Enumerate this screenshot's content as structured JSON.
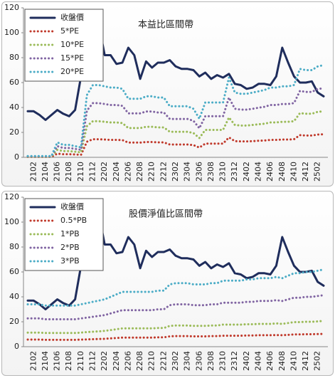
{
  "chart_data": [
    {
      "type": "line",
      "title": "本益比區間帶",
      "ylim": [
        0,
        120
      ],
      "yticks": [
        0,
        20,
        40,
        60,
        80,
        100,
        120
      ],
      "legend": "upper left",
      "categories": [
        null,
        "2102",
        null,
        "2104",
        null,
        "2106",
        null,
        "2108",
        null,
        "2110",
        null,
        "2112",
        null,
        "2202",
        null,
        "2204",
        null,
        "2206",
        null,
        "2208",
        null,
        "2210",
        null,
        "2212",
        null,
        "2302",
        null,
        "2304",
        null,
        "2306",
        null,
        "2308",
        null,
        "2310",
        null,
        "2312",
        null,
        "2402",
        null,
        "2404",
        null,
        "2406",
        null,
        "2408",
        null,
        "2410",
        null,
        "2412",
        null,
        "2502",
        null
      ],
      "series": [
        {
          "name": "收盤價",
          "color": "#1f2d5c",
          "style": "solid",
          "values": [
            37,
            37,
            34,
            30,
            34,
            38,
            35,
            33,
            38,
            65,
            85,
            111,
            107,
            82,
            82,
            75,
            76,
            88,
            82,
            63,
            77,
            72,
            76,
            76,
            78,
            73,
            71,
            71,
            70,
            65,
            68,
            63,
            66,
            64,
            67,
            59,
            58,
            55,
            56,
            59,
            59,
            58,
            65,
            88,
            76,
            65,
            60,
            60,
            61,
            52,
            49
          ]
        },
        {
          "name": "5*PE",
          "color": "#c0392b",
          "style": "dotted",
          "values": [
            0.3,
            0.3,
            0.3,
            0.3,
            0.3,
            3,
            2.5,
            2.5,
            2.3,
            2,
            12.5,
            14.5,
            14.5,
            14.3,
            14,
            14,
            13.8,
            11.8,
            11.8,
            11.8,
            12.3,
            12.3,
            12,
            12,
            10.3,
            10.3,
            10.3,
            10.3,
            9.8,
            7.8,
            11,
            11,
            11,
            11,
            16,
            13,
            12.8,
            12.8,
            13,
            13.3,
            13.5,
            14,
            14,
            14.3,
            14.3,
            14.5,
            17.8,
            17.5,
            17.5,
            18.3,
            18.5
          ]
        },
        {
          "name": "10*PE",
          "color": "#9bbb59",
          "style": "dotted",
          "values": [
            0.5,
            0.5,
            0.5,
            0.5,
            0.5,
            6,
            5,
            5,
            4.5,
            4,
            25,
            29,
            29,
            28.5,
            28,
            28,
            27.5,
            23.5,
            23.5,
            23.5,
            24.5,
            24.5,
            24,
            24,
            20.5,
            20.5,
            20.5,
            20.5,
            19.5,
            15.5,
            22,
            22,
            22,
            22,
            32,
            26,
            25.5,
            25.5,
            26,
            26.5,
            27,
            28,
            28,
            28.5,
            28.5,
            29,
            35.5,
            35,
            35,
            36.5,
            37
          ]
        },
        {
          "name": "15*PE",
          "color": "#8064a2",
          "style": "dotted",
          "values": [
            0.8,
            0.8,
            0.8,
            0.8,
            0.8,
            9,
            7.5,
            7.5,
            6.8,
            6,
            37.5,
            43.5,
            43.5,
            42.8,
            42,
            42,
            41.3,
            35.3,
            35.3,
            35.3,
            36.8,
            36.8,
            36,
            36,
            30.8,
            30.8,
            30.8,
            30.8,
            29.3,
            23.3,
            33,
            33,
            33,
            33,
            48,
            39,
            38.3,
            38.3,
            39,
            39.8,
            40.5,
            42,
            42,
            42.8,
            42.8,
            43.5,
            53.3,
            52.5,
            52.5,
            54.8,
            55.5
          ]
        },
        {
          "name": "20*PE",
          "color": "#4bacc6",
          "style": "dotted",
          "values": [
            1,
            1,
            1,
            1,
            1,
            12,
            10,
            10,
            9,
            8,
            50,
            58,
            58,
            57,
            56,
            56,
            55,
            47,
            47,
            47,
            49,
            49,
            48,
            48,
            41,
            41,
            41,
            41,
            39,
            31,
            44,
            44,
            44,
            44,
            64,
            52,
            51,
            51,
            52,
            53,
            54,
            56,
            56,
            57,
            57,
            58,
            71,
            70,
            70,
            73,
            74
          ]
        }
      ]
    },
    {
      "type": "line",
      "title": "股價淨值比區間帶",
      "ylim": [
        0,
        120
      ],
      "yticks": [
        0,
        20,
        40,
        60,
        80,
        100,
        120
      ],
      "legend": "upper left",
      "categories": [
        null,
        "2102",
        null,
        "2104",
        null,
        "2106",
        null,
        "2108",
        null,
        "2110",
        null,
        "2112",
        null,
        "2202",
        null,
        "2204",
        null,
        "2206",
        null,
        "2208",
        null,
        "2210",
        null,
        "2212",
        null,
        "2302",
        null,
        "2304",
        null,
        "2306",
        null,
        "2308",
        null,
        "2310",
        null,
        "2312",
        null,
        "2402",
        null,
        "2404",
        null,
        "2406",
        null,
        "2408",
        null,
        "2410",
        null,
        "2412",
        null,
        "2502",
        null
      ],
      "series": [
        {
          "name": "收盤價",
          "color": "#1f2d5c",
          "style": "solid",
          "values": [
            37,
            37,
            34,
            30,
            34,
            38,
            35,
            33,
            38,
            65,
            85,
            111,
            107,
            82,
            82,
            75,
            76,
            88,
            82,
            63,
            77,
            72,
            76,
            76,
            78,
            73,
            71,
            71,
            70,
            65,
            68,
            63,
            66,
            64,
            67,
            59,
            58,
            55,
            56,
            59,
            59,
            58,
            65,
            88,
            76,
            65,
            60,
            60,
            61,
            52,
            49
          ]
        },
        {
          "name": "0.5*PB",
          "color": "#c0392b",
          "style": "dotted",
          "values": [
            5.7,
            5.7,
            5.7,
            5.5,
            5.5,
            5.5,
            5.5,
            5.5,
            5.5,
            5.7,
            5.8,
            6,
            6.2,
            6.3,
            6.7,
            7,
            7.3,
            7.3,
            7.3,
            7.3,
            7.3,
            7.3,
            7.5,
            7.5,
            8.3,
            8.5,
            8.5,
            8.5,
            8.3,
            8.3,
            8.3,
            8.5,
            8.5,
            8.8,
            8.8,
            8.8,
            8.8,
            9,
            9,
            9.2,
            9.2,
            9.2,
            9.3,
            9.2,
            9.5,
            9.8,
            9.8,
            10,
            10,
            10.2,
            10.3
          ]
        },
        {
          "name": "1*PB",
          "color": "#9bbb59",
          "style": "dotted",
          "values": [
            11.3,
            11.3,
            11.3,
            11,
            11,
            11,
            11,
            11,
            11,
            11.3,
            11.7,
            12,
            12.3,
            12.7,
            13.3,
            14,
            14.7,
            14.7,
            14.7,
            14.7,
            14.7,
            14.7,
            15,
            15,
            16.7,
            17,
            17,
            17,
            16.7,
            16.7,
            16.7,
            17,
            17,
            17.7,
            17.7,
            17.7,
            17.7,
            18,
            18,
            18.3,
            18.3,
            18.3,
            18.7,
            18.3,
            19,
            19.7,
            19.7,
            20,
            20,
            20.3,
            20.7
          ]
        },
        {
          "name": "2*PB",
          "color": "#8064a2",
          "style": "dotted",
          "values": [
            22.7,
            22.7,
            22.7,
            22,
            22,
            22,
            22,
            22,
            22,
            22.7,
            23.3,
            24,
            24.7,
            25.3,
            26.7,
            28,
            29.3,
            29.3,
            29.3,
            29.3,
            29.3,
            29.3,
            30,
            30,
            33.3,
            34,
            34,
            34,
            33.3,
            33.3,
            33.3,
            34,
            34,
            35.3,
            35.3,
            35.3,
            35.3,
            36,
            36,
            36.7,
            36.7,
            36.7,
            37.3,
            36.7,
            38,
            39.3,
            39.3,
            40,
            40,
            40.7,
            41.3
          ]
        },
        {
          "name": "3*PB",
          "color": "#4bacc6",
          "style": "dotted",
          "values": [
            34,
            34,
            34,
            33,
            33,
            33,
            33,
            33,
            33,
            34,
            35,
            36,
            37,
            38,
            40,
            42,
            44,
            44,
            44,
            44,
            44,
            44,
            45,
            45,
            50,
            51,
            51,
            51,
            50,
            50,
            50,
            51,
            51,
            53,
            53,
            53,
            53,
            54,
            54,
            55,
            55,
            55,
            56,
            55,
            57,
            59,
            59,
            60,
            60,
            61,
            62
          ]
        }
      ]
    }
  ]
}
